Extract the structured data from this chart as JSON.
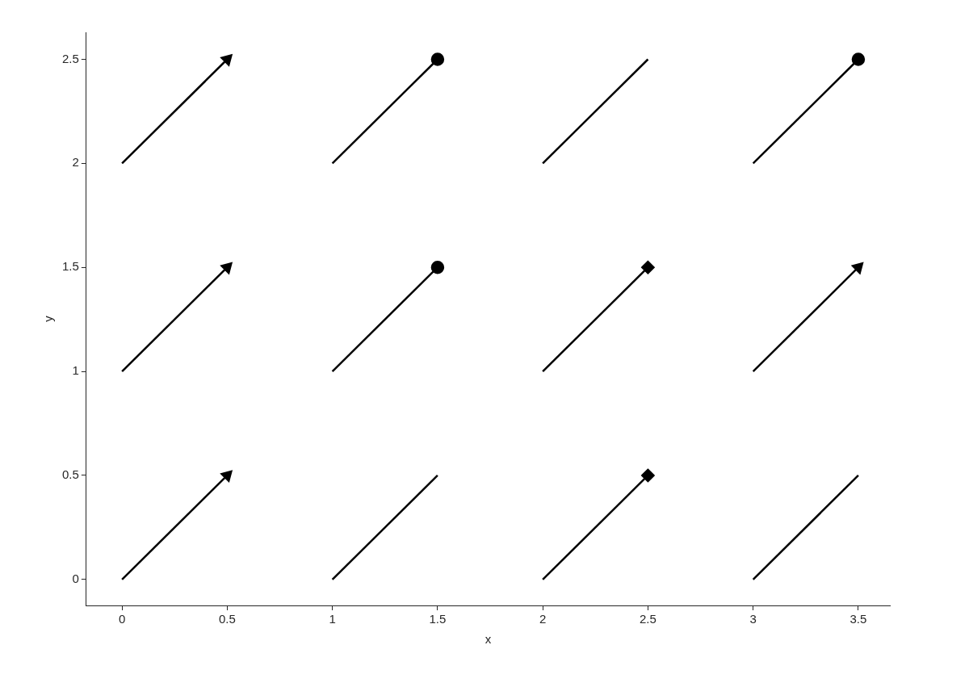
{
  "chart_data": {
    "type": "line",
    "xlabel": "x",
    "ylabel": "y",
    "xlim": [
      -0.17,
      3.65
    ],
    "ylim": [
      -0.125,
      2.63
    ],
    "xticks": [
      0,
      0.5,
      1,
      1.5,
      2,
      2.5,
      3,
      3.5
    ],
    "yticks": [
      0,
      0.5,
      1,
      1.5,
      2,
      2.5
    ],
    "grid": false,
    "legend": false,
    "line_style": "solid",
    "series": [
      {
        "color": "#000000",
        "x": [
          0,
          0.5
        ],
        "values": [
          2,
          2.5
        ],
        "marker": "triangle"
      },
      {
        "color": "#000000",
        "x": [
          1,
          1.5
        ],
        "values": [
          2,
          2.5
        ],
        "marker": "circle"
      },
      {
        "color": "#000000",
        "x": [
          2,
          2.5
        ],
        "values": [
          2,
          2.5
        ],
        "marker": "none"
      },
      {
        "color": "#000000",
        "x": [
          3,
          3.5
        ],
        "values": [
          2,
          2.5
        ],
        "marker": "circle"
      },
      {
        "color": "#000000",
        "x": [
          0,
          0.5
        ],
        "values": [
          1,
          1.5
        ],
        "marker": "triangle"
      },
      {
        "color": "#000000",
        "x": [
          1,
          1.5
        ],
        "values": [
          1,
          1.5
        ],
        "marker": "circle"
      },
      {
        "color": "#000000",
        "x": [
          2,
          2.5
        ],
        "values": [
          1,
          1.5
        ],
        "marker": "diamond"
      },
      {
        "color": "#000000",
        "x": [
          3,
          3.5
        ],
        "values": [
          1,
          1.5
        ],
        "marker": "triangle"
      },
      {
        "color": "#000000",
        "x": [
          0,
          0.5
        ],
        "values": [
          0,
          0.5
        ],
        "marker": "triangle"
      },
      {
        "color": "#000000",
        "x": [
          1,
          1.5
        ],
        "values": [
          0,
          0.5
        ],
        "marker": "none"
      },
      {
        "color": "#000000",
        "x": [
          2,
          2.5
        ],
        "values": [
          0,
          0.5
        ],
        "marker": "diamond"
      },
      {
        "color": "#000000",
        "x": [
          3,
          3.5
        ],
        "values": [
          0,
          0.5
        ],
        "marker": "none"
      }
    ]
  }
}
